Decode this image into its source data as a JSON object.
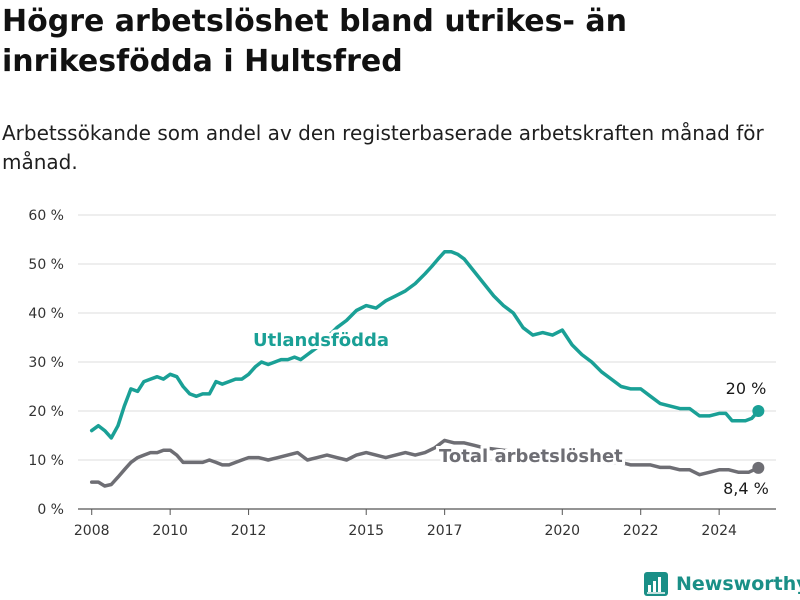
{
  "title": "Högre arbetslöshet bland utrikes- än inrikesfödda i Hultsfred",
  "subtitle": "Arbetssökande som andel av den registerbaserade arbetskraften månad för månad.",
  "brand": "Newsworthy",
  "colors": {
    "foreign": "#1aa096",
    "total": "#6e6e74",
    "grid": "#dddddd",
    "brand": "#1a8f87"
  },
  "chart_data": {
    "type": "line",
    "x_unit": "year",
    "xlim": [
      2007.65,
      2025.45
    ],
    "ylim": [
      0,
      60
    ],
    "x_ticks": [
      2008,
      2010,
      2012,
      2015,
      2017,
      2020,
      2022,
      2024
    ],
    "x_tick_labels": [
      "2008",
      "2010",
      "2012",
      "2015",
      "2017",
      "2020",
      "2022",
      "2024"
    ],
    "y_ticks": [
      0,
      10,
      20,
      30,
      40,
      50,
      60
    ],
    "y_tick_labels": [
      "0 %",
      "10 %",
      "20 %",
      "30 %",
      "40 %",
      "50 %",
      "60 %"
    ],
    "grid": true,
    "legend": "inline",
    "series": [
      {
        "name": "Utlandsfödda",
        "color": "#1aa096",
        "end_label": "20 %",
        "x": [
          2008.0,
          2008.17,
          2008.33,
          2008.5,
          2008.67,
          2008.83,
          2009.0,
          2009.17,
          2009.33,
          2009.5,
          2009.67,
          2009.83,
          2010.0,
          2010.17,
          2010.33,
          2010.5,
          2010.67,
          2010.83,
          2011.0,
          2011.17,
          2011.33,
          2011.5,
          2011.67,
          2011.83,
          2012.0,
          2012.17,
          2012.33,
          2012.5,
          2012.67,
          2012.83,
          2013.0,
          2013.17,
          2013.33,
          2013.5,
          2013.75,
          2014.0,
          2014.25,
          2014.5,
          2014.75,
          2015.0,
          2015.25,
          2015.5,
          2015.75,
          2016.0,
          2016.25,
          2016.5,
          2016.67,
          2016.83,
          2017.0,
          2017.17,
          2017.33,
          2017.5,
          2017.75,
          2018.0,
          2018.25,
          2018.5,
          2018.75,
          2019.0,
          2019.25,
          2019.5,
          2019.75,
          2020.0,
          2020.25,
          2020.5,
          2020.75,
          2021.0,
          2021.25,
          2021.5,
          2021.75,
          2022.0,
          2022.25,
          2022.5,
          2022.75,
          2023.0,
          2023.25,
          2023.5,
          2023.75,
          2024.0,
          2024.17,
          2024.33,
          2024.5,
          2024.67,
          2024.83,
          2025.0
        ],
        "values": [
          16,
          17,
          16,
          14.5,
          17,
          21,
          24.5,
          24,
          26,
          26.5,
          27,
          26.5,
          27.5,
          27,
          25,
          23.5,
          23,
          23.5,
          23.5,
          26,
          25.5,
          26,
          26.5,
          26.5,
          27.5,
          29,
          30,
          29.5,
          30,
          30.5,
          30.5,
          31,
          30.5,
          31.5,
          33,
          35,
          37,
          38.5,
          40.5,
          41.5,
          41,
          42.5,
          43.5,
          44.5,
          46,
          48,
          49.5,
          51,
          52.5,
          52.5,
          52,
          51,
          48.5,
          46,
          43.5,
          41.5,
          40,
          37,
          35.5,
          36,
          35.5,
          36.5,
          33.5,
          31.5,
          30,
          28,
          26.5,
          25,
          24.5,
          24.5,
          23,
          21.5,
          21,
          20.5,
          20.5,
          19,
          19,
          19.5,
          19.5,
          18,
          18,
          18,
          18.5,
          20
        ]
      },
      {
        "name": "Total arbetslöshet",
        "color": "#6e6e74",
        "end_label": "8,4 %",
        "x": [
          2008.0,
          2008.17,
          2008.33,
          2008.5,
          2008.67,
          2008.83,
          2009.0,
          2009.17,
          2009.33,
          2009.5,
          2009.67,
          2009.83,
          2010.0,
          2010.17,
          2010.33,
          2010.5,
          2010.67,
          2010.83,
          2011.0,
          2011.17,
          2011.33,
          2011.5,
          2011.67,
          2011.83,
          2012.0,
          2012.25,
          2012.5,
          2012.75,
          2013.0,
          2013.25,
          2013.5,
          2013.75,
          2014.0,
          2014.25,
          2014.5,
          2014.75,
          2015.0,
          2015.25,
          2015.5,
          2015.75,
          2016.0,
          2016.25,
          2016.5,
          2016.75,
          2017.0,
          2017.25,
          2017.5,
          2017.75,
          2018.0,
          2018.5,
          2019.0,
          2019.5,
          2020.0,
          2020.5,
          2021.0,
          2021.5,
          2021.75,
          2022.0,
          2022.25,
          2022.5,
          2022.75,
          2023.0,
          2023.25,
          2023.5,
          2023.75,
          2024.0,
          2024.25,
          2024.5,
          2024.75,
          2025.0
        ],
        "values": [
          5.5,
          5.5,
          4.7,
          5,
          6.5,
          8,
          9.5,
          10.5,
          11,
          11.5,
          11.5,
          12,
          12,
          11,
          9.5,
          9.5,
          9.5,
          9.5,
          10,
          9.5,
          9,
          9,
          9.5,
          10,
          10.5,
          10.5,
          10,
          10.5,
          11,
          11.5,
          10,
          10.5,
          11,
          10.5,
          10,
          11,
          11.5,
          11,
          10.5,
          11,
          11.5,
          11,
          11.5,
          12.5,
          14,
          13.5,
          13.5,
          13,
          12.5,
          12,
          11.5,
          11,
          10.5,
          10,
          9.5,
          9.5,
          9,
          9,
          9,
          8.5,
          8.5,
          8,
          8,
          7,
          7.5,
          8,
          8,
          7.5,
          7.5,
          8.4
        ]
      }
    ]
  }
}
